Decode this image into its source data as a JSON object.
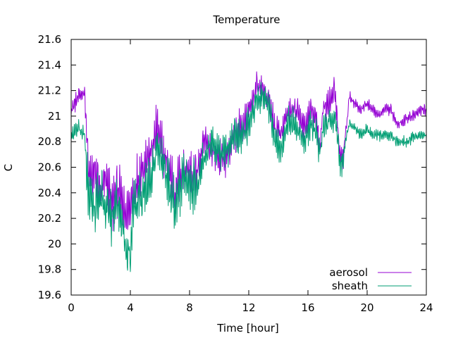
{
  "chart_data": {
    "type": "line",
    "title": "Temperature",
    "xlabel": "Time [hour]",
    "ylabel": "C",
    "xlim": [
      0,
      24
    ],
    "ylim": [
      19.6,
      21.6
    ],
    "x_ticks": [
      0,
      4,
      8,
      12,
      16,
      20,
      24
    ],
    "y_ticks": [
      19.6,
      19.8,
      20,
      20.2,
      20.4,
      20.6,
      20.8,
      21,
      21.2,
      21.4,
      21.6
    ],
    "y_tick_labels": [
      "19.6",
      "19.8",
      "20",
      "20.2",
      "20.4",
      "20.6",
      "20.8",
      "21",
      "21.2",
      "21.4",
      "21.6"
    ],
    "grid": false,
    "legend_position": "bottom-right",
    "series": [
      {
        "name": "aerosol",
        "color": "#9400d3",
        "x": [
          0,
          0.5,
          0.9,
          1.2,
          1.6,
          2.0,
          2.4,
          2.8,
          3.2,
          3.6,
          4.0,
          4.2,
          4.6,
          5.0,
          5.4,
          5.8,
          6.2,
          6.6,
          7.0,
          7.4,
          7.8,
          8.2,
          8.6,
          9.0,
          9.4,
          9.8,
          10.2,
          10.6,
          11.0,
          11.4,
          11.8,
          12.2,
          12.6,
          13.0,
          13.4,
          13.8,
          14.2,
          14.6,
          15.0,
          15.4,
          15.8,
          16.2,
          16.6,
          16.8,
          17.0,
          17.4,
          17.8,
          18.2,
          18.4,
          18.8,
          19.2,
          19.6,
          20.0,
          20.4,
          20.8,
          21.2,
          21.6,
          22.0,
          22.4,
          22.8,
          23.2,
          23.6,
          24.0
        ],
        "y": [
          21.05,
          21.15,
          21.2,
          20.5,
          20.55,
          20.4,
          20.5,
          20.3,
          20.45,
          20.2,
          20.3,
          20.4,
          20.55,
          20.65,
          20.7,
          20.9,
          20.7,
          20.6,
          20.4,
          20.55,
          20.6,
          20.5,
          20.6,
          20.8,
          20.75,
          20.7,
          20.65,
          20.7,
          20.85,
          20.9,
          20.95,
          21.1,
          21.25,
          21.2,
          21.1,
          20.9,
          20.85,
          21.0,
          21.05,
          21.0,
          20.9,
          21.05,
          20.95,
          20.75,
          21.05,
          21.1,
          21.2,
          20.65,
          20.7,
          21.15,
          21.1,
          21.05,
          21.1,
          21.05,
          21.0,
          21.05,
          21.05,
          20.95,
          20.95,
          21.0,
          21.0,
          21.05,
          21.05
        ]
      },
      {
        "name": "sheath",
        "color": "#009e73",
        "x": [
          0,
          0.5,
          0.9,
          1.2,
          1.6,
          2.0,
          2.4,
          2.8,
          3.2,
          3.6,
          4.0,
          4.2,
          4.6,
          5.0,
          5.4,
          5.8,
          6.2,
          6.6,
          7.0,
          7.4,
          7.8,
          8.2,
          8.6,
          9.0,
          9.4,
          9.8,
          10.2,
          10.6,
          11.0,
          11.4,
          11.8,
          12.2,
          12.6,
          13.0,
          13.4,
          13.8,
          14.2,
          14.6,
          15.0,
          15.4,
          15.8,
          16.2,
          16.6,
          16.8,
          17.0,
          17.4,
          17.8,
          18.2,
          18.4,
          18.8,
          19.2,
          19.6,
          20.0,
          20.4,
          20.8,
          21.2,
          21.6,
          22.0,
          22.4,
          22.8,
          23.2,
          23.6,
          24.0
        ],
        "y": [
          20.85,
          20.9,
          20.85,
          20.35,
          20.3,
          20.35,
          20.3,
          20.2,
          20.3,
          20.05,
          19.9,
          20.3,
          20.35,
          20.4,
          20.5,
          20.75,
          20.65,
          20.45,
          20.3,
          20.45,
          20.5,
          20.45,
          20.5,
          20.7,
          20.8,
          20.75,
          20.7,
          20.75,
          20.85,
          20.85,
          20.9,
          21.0,
          21.15,
          21.15,
          21.05,
          20.8,
          20.75,
          20.95,
          20.95,
          20.9,
          20.8,
          20.95,
          20.85,
          20.7,
          20.9,
          20.95,
          21.0,
          20.6,
          20.7,
          20.95,
          20.9,
          20.85,
          20.9,
          20.85,
          20.85,
          20.85,
          20.85,
          20.8,
          20.8,
          20.8,
          20.85,
          20.85,
          20.85
        ]
      }
    ]
  }
}
